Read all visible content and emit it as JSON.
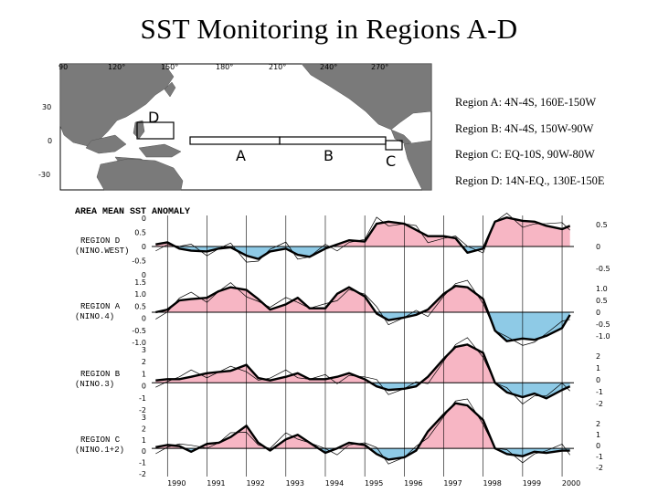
{
  "page": {
    "title": "SST Monitoring in Regions A-D"
  },
  "map": {
    "lon_labels": [
      "90",
      "120°",
      "150°",
      "180°",
      "210°",
      "240°",
      "270°"
    ],
    "lat_labels": [
      "30",
      "0",
      "-30"
    ],
    "box_labels": [
      "A",
      "B",
      "C",
      "D"
    ],
    "colors": {
      "land": "#7a7a7a",
      "ocean": "#ffffff"
    }
  },
  "legend": {
    "items": [
      "Region A: 4N-4S,   160E-150W",
      "Region B: 4N-4S,   150W-90W",
      "Region C: EQ-10S,   90W-80W",
      "Region D: 14N-EQ., 130E-150E"
    ]
  },
  "chart_data": {
    "type": "area",
    "title": "AREA MEAN SST ANOMALY",
    "x_labels": [
      "1990",
      "1991",
      "1992",
      "1993",
      "1994",
      "1995",
      "1996",
      "1997",
      "1998",
      "1999",
      "2000"
    ],
    "xlim": [
      1989.6,
      2000.3
    ],
    "colors": {
      "positive": "#f7b6c4",
      "negative": "#8ecae6"
    },
    "panels": [
      {
        "name": "REGION D (NINO.WEST)",
        "label_lines": [
          "REGION D",
          "(NINO.WEST)"
        ],
        "ylim": [
          -0.75,
          0.75
        ],
        "yticks": [
          "0",
          "0.5",
          "0",
          "-0.5",
          "0"
        ],
        "yticks_right": [
          "0.5",
          "0",
          "-0.5"
        ],
        "x": [
          1989.7,
          1990.0,
          1990.3,
          1990.6,
          1991.0,
          1991.3,
          1991.6,
          1992.0,
          1992.3,
          1992.6,
          1993.0,
          1993.3,
          1993.6,
          1994.0,
          1994.3,
          1994.6,
          1995.0,
          1995.3,
          1995.6,
          1996.0,
          1996.3,
          1996.6,
          1997.0,
          1997.3,
          1997.6,
          1998.0,
          1998.3,
          1998.6,
          1999.0,
          1999.3,
          1999.6,
          2000.0,
          2000.2
        ],
        "values": [
          0.05,
          0.1,
          -0.05,
          -0.1,
          -0.12,
          -0.05,
          -0.02,
          -0.22,
          -0.3,
          -0.12,
          -0.05,
          -0.2,
          -0.25,
          -0.05,
          0.05,
          0.15,
          0.12,
          0.55,
          0.6,
          0.55,
          0.4,
          0.25,
          0.25,
          0.2,
          -0.15,
          -0.05,
          0.6,
          0.7,
          0.62,
          0.6,
          0.5,
          0.42,
          0.5
        ]
      },
      {
        "name": "REGION A (NINO.4)",
        "label_lines": [
          "REGION A",
          "(NINO.4)"
        ],
        "ylim": [
          -1.25,
          1.25
        ],
        "yticks": [
          "1.5",
          "1.0",
          "0.5",
          "0",
          "-0.5",
          "-1.0"
        ],
        "yticks_right": [
          "1.0",
          "0.5",
          "0",
          "-0.5",
          "-1.0"
        ],
        "x": [
          1989.7,
          1990.0,
          1990.3,
          1990.6,
          1991.0,
          1991.3,
          1991.6,
          1992.0,
          1992.3,
          1992.6,
          1993.0,
          1993.3,
          1993.6,
          1994.0,
          1994.3,
          1994.6,
          1995.0,
          1995.3,
          1995.6,
          1996.0,
          1996.3,
          1996.6,
          1997.0,
          1997.3,
          1997.6,
          1998.0,
          1998.3,
          1998.6,
          1999.0,
          1999.3,
          1999.6,
          2000.0,
          2000.2
        ],
        "values": [
          0.0,
          0.1,
          0.45,
          0.5,
          0.55,
          0.8,
          0.95,
          0.85,
          0.5,
          0.1,
          0.3,
          0.55,
          0.15,
          0.15,
          0.7,
          0.95,
          0.6,
          -0.05,
          -0.3,
          -0.2,
          -0.1,
          0.1,
          0.7,
          1.0,
          0.95,
          0.5,
          -0.7,
          -1.1,
          -1.0,
          -1.05,
          -0.9,
          -0.6,
          -0.1
        ]
      },
      {
        "name": "REGION B (NINO.3)",
        "label_lines": [
          "REGION B",
          "(NINO.3)"
        ],
        "ylim": [
          -2.5,
          3.0
        ],
        "yticks": [
          "3",
          "2",
          "1",
          "0",
          "-1",
          "-2"
        ],
        "yticks_right": [
          "2",
          "1",
          "0",
          "-1",
          "-2"
        ],
        "x": [
          1989.7,
          1990.0,
          1990.3,
          1990.6,
          1991.0,
          1991.3,
          1991.6,
          1992.0,
          1992.3,
          1992.6,
          1993.0,
          1993.3,
          1993.6,
          1994.0,
          1994.3,
          1994.6,
          1995.0,
          1995.3,
          1995.6,
          1996.0,
          1996.3,
          1996.6,
          1997.0,
          1997.3,
          1997.6,
          1998.0,
          1998.3,
          1998.6,
          1999.0,
          1999.3,
          1999.6,
          2000.0,
          2000.2
        ],
        "values": [
          0.2,
          0.3,
          0.3,
          0.5,
          0.8,
          0.9,
          1.0,
          1.5,
          0.4,
          0.2,
          0.5,
          0.8,
          0.3,
          0.3,
          0.5,
          0.8,
          0.3,
          -0.3,
          -0.6,
          -0.5,
          -0.3,
          0.5,
          2.0,
          3.0,
          3.2,
          2.5,
          0.0,
          -0.8,
          -1.2,
          -0.9,
          -1.3,
          -0.6,
          -0.3
        ]
      },
      {
        "name": "REGION C (NINO.1+2)",
        "label_lines": [
          "REGION C",
          "(NINO.1+2)"
        ],
        "ylim": [
          -2.5,
          3.0
        ],
        "yticks": [
          "3",
          "2",
          "1",
          "0",
          "-1",
          "-2"
        ],
        "yticks_right": [
          "2",
          "1",
          "0",
          "-1",
          "-2"
        ],
        "x": [
          1989.7,
          1990.0,
          1990.3,
          1990.6,
          1991.0,
          1991.3,
          1991.6,
          1992.0,
          1992.3,
          1992.6,
          1993.0,
          1993.3,
          1993.6,
          1994.0,
          1994.3,
          1994.6,
          1995.0,
          1995.3,
          1995.6,
          1996.0,
          1996.3,
          1996.6,
          1997.0,
          1997.3,
          1997.6,
          1998.0,
          1998.3,
          1998.6,
          1999.0,
          1999.3,
          1999.6,
          2000.0,
          2000.2
        ],
        "values": [
          0.1,
          0.3,
          0.2,
          -0.3,
          0.4,
          0.5,
          1.0,
          2.0,
          0.5,
          -0.2,
          0.8,
          1.2,
          0.5,
          -0.4,
          0.0,
          0.5,
          0.3,
          -0.5,
          -1.0,
          -0.8,
          -0.2,
          1.5,
          3.0,
          4.0,
          3.8,
          2.5,
          0.0,
          -0.5,
          -0.7,
          -0.3,
          -0.4,
          -0.2,
          -0.2
        ]
      }
    ]
  }
}
